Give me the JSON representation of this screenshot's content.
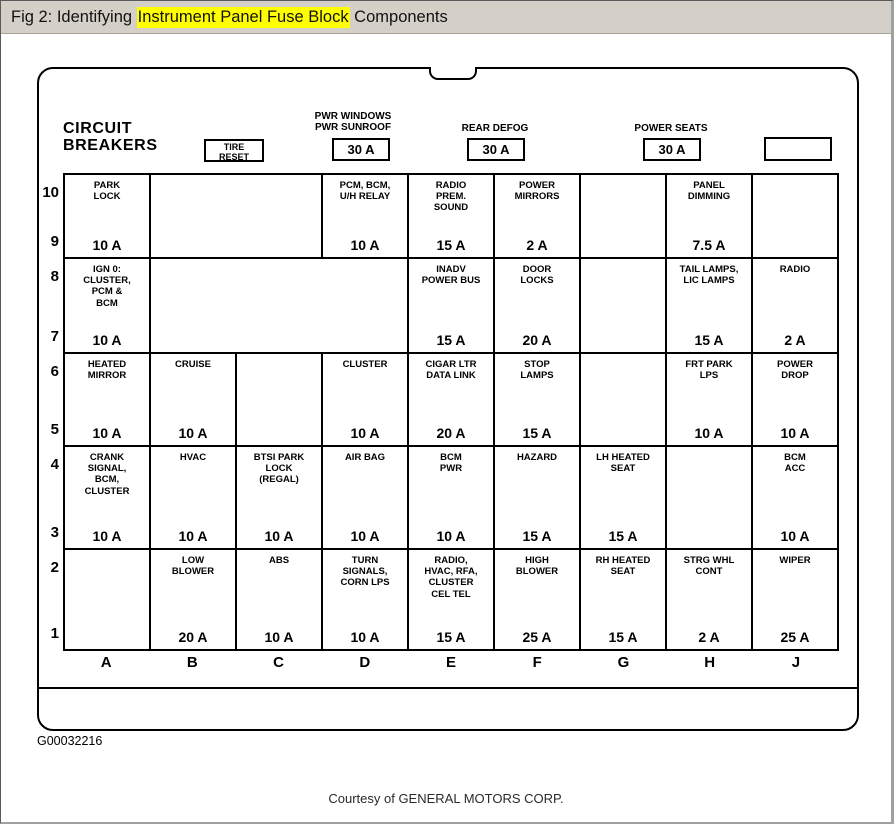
{
  "title_bar": {
    "prefix": "Fig 2: Identifying ",
    "highlight": "Instrument Panel Fuse Block",
    "suffix": " Components",
    "highlight_color": "#ffff00",
    "background_color": "#d4d0c8"
  },
  "block": {
    "circuit_breakers": "CIRCUIT\nBREAKERS",
    "tire_reset": "TIRE\nRESET",
    "breakers": [
      {
        "label": "PWR WINDOWS\nPWR SUNROOF",
        "value": "30 A"
      },
      {
        "label": "REAR DEFOG",
        "value": "30 A"
      },
      {
        "label": "POWER SEATS",
        "value": "30 A"
      }
    ]
  },
  "grid": {
    "row_numbers": [
      [
        "10",
        "9"
      ],
      [
        "8",
        "7"
      ],
      [
        "6",
        "5"
      ],
      [
        "4",
        "3"
      ],
      [
        "2",
        "1"
      ]
    ],
    "column_letters": [
      "A",
      "B",
      "C",
      "D",
      "E",
      "F",
      "G",
      "H",
      "J"
    ],
    "rows": [
      [
        {
          "label": "PARK\nLOCK",
          "amp": "10 A"
        },
        {
          "label": "",
          "amp": "",
          "span": 2
        },
        {
          "label": "PCM, BCM,\nU/H RELAY",
          "amp": "10 A"
        },
        {
          "label": "RADIO\nPREM.\nSOUND",
          "amp": "15 A"
        },
        {
          "label": "POWER\nMIRRORS",
          "amp": "2 A"
        },
        {
          "label": "",
          "amp": ""
        },
        {
          "label": "PANEL\nDIMMING",
          "amp": "7.5 A"
        },
        {
          "label": "",
          "amp": ""
        }
      ],
      [
        {
          "label": "IGN 0:\nCLUSTER,\nPCM &\nBCM",
          "amp": "10 A"
        },
        {
          "label": "",
          "amp": "",
          "span": 3
        },
        {
          "label": "INADV\nPOWER BUS",
          "amp": "15 A"
        },
        {
          "label": "DOOR\nLOCKS",
          "amp": "20 A"
        },
        {
          "label": "",
          "amp": ""
        },
        {
          "label": "TAIL LAMPS,\nLIC LAMPS",
          "amp": "15 A"
        },
        {
          "label": "RADIO",
          "amp": "2 A"
        }
      ],
      [
        {
          "label": "HEATED\nMIRROR",
          "amp": "10 A"
        },
        {
          "label": "CRUISE",
          "amp": "10 A"
        },
        {
          "label": "",
          "amp": ""
        },
        {
          "label": "CLUSTER",
          "amp": "10 A"
        },
        {
          "label": "CIGAR LTR\nDATA LINK",
          "amp": "20 A"
        },
        {
          "label": "STOP\nLAMPS",
          "amp": "15 A"
        },
        {
          "label": "",
          "amp": ""
        },
        {
          "label": "FRT PARK\nLPS",
          "amp": "10 A"
        },
        {
          "label": "POWER\nDROP",
          "amp": "10 A"
        }
      ],
      [
        {
          "label": "CRANK\nSIGNAL,\nBCM,\nCLUSTER",
          "amp": "10 A"
        },
        {
          "label": "HVAC",
          "amp": "10 A"
        },
        {
          "label": "BTSI PARK\nLOCK\n(REGAL)",
          "amp": "10 A"
        },
        {
          "label": "AIR BAG",
          "amp": "10 A"
        },
        {
          "label": "BCM\nPWR",
          "amp": "10 A"
        },
        {
          "label": "HAZARD",
          "amp": "15 A"
        },
        {
          "label": "LH HEATED\nSEAT",
          "amp": "15 A"
        },
        {
          "label": "",
          "amp": ""
        },
        {
          "label": "BCM\nACC",
          "amp": "10 A"
        }
      ],
      [
        {
          "label": "",
          "amp": ""
        },
        {
          "label": "LOW\nBLOWER",
          "amp": "20 A"
        },
        {
          "label": "ABS",
          "amp": "10 A"
        },
        {
          "label": "TURN\nSIGNALS,\nCORN LPS",
          "amp": "10 A"
        },
        {
          "label": "RADIO,\nHVAC, RFA,\nCLUSTER\nCEL TEL",
          "amp": "15 A"
        },
        {
          "label": "HIGH\nBLOWER",
          "amp": "25 A"
        },
        {
          "label": "RH HEATED\nSEAT",
          "amp": "15 A"
        },
        {
          "label": "STRG WHL\nCONT",
          "amp": "2 A"
        },
        {
          "label": "WIPER",
          "amp": "25 A"
        }
      ]
    ]
  },
  "footer": {
    "figure_code": "G00032216",
    "courtesy": "Courtesy of GENERAL MOTORS CORP."
  }
}
